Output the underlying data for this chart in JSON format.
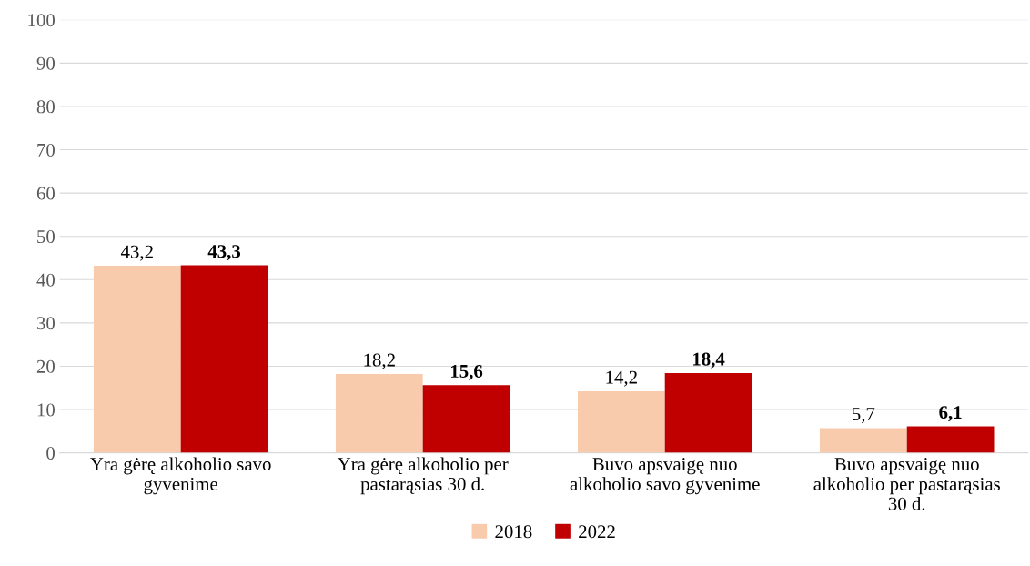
{
  "chart_data": {
    "type": "bar",
    "categories": [
      "Yra gėrę alkoholio savo\ngyvenime",
      "Yra gėrę alkoholio per\npastarąsias 30 d.",
      "Buvo apsvaigę nuo\nalkoholio savo gyvenime",
      "Buvo apsvaigę nuo\nalkoholio per pastarąsias\n30 d."
    ],
    "series": [
      {
        "name": "2018",
        "color": "#f8cbad",
        "values": [
          43.2,
          18.2,
          14.2,
          5.7
        ],
        "value_labels": [
          "43,2",
          "18,2",
          "14,2",
          "5,7"
        ]
      },
      {
        "name": "2022",
        "color": "#c00000",
        "values": [
          43.3,
          15.6,
          18.4,
          6.1
        ],
        "value_labels": [
          "43,3",
          "15,6",
          "18,4",
          "6,1"
        ]
      }
    ],
    "ylim": [
      0,
      100
    ],
    "yticks": [
      0,
      10,
      20,
      30,
      40,
      50,
      60,
      70,
      80,
      90,
      100
    ],
    "grid": "y",
    "legend": "bottom"
  }
}
